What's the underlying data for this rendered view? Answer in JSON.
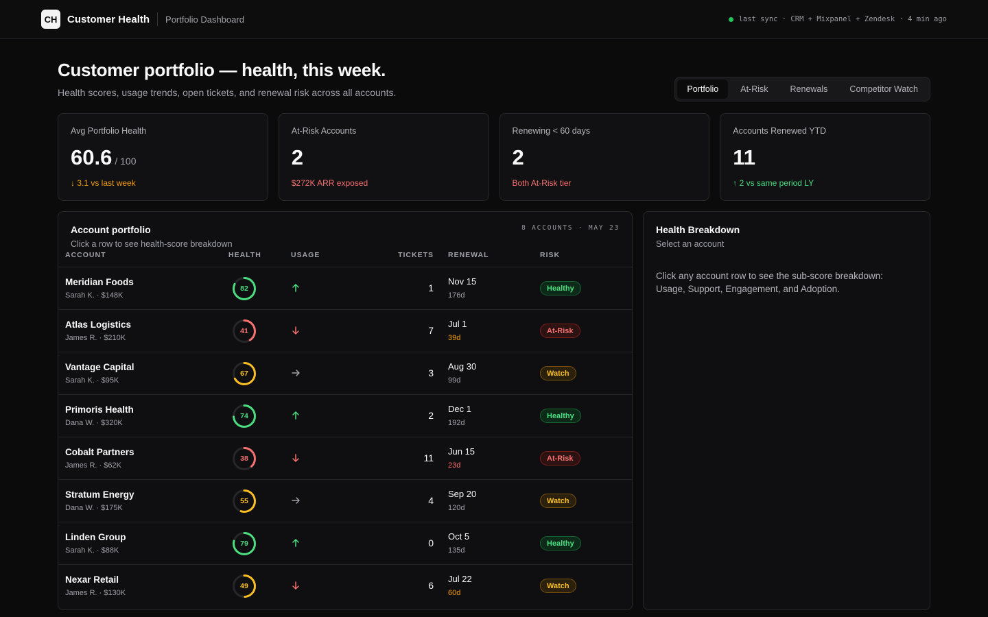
{
  "header": {
    "logo": "CH",
    "app_title": "Customer Health",
    "breadcrumb": "Portfolio Dashboard",
    "sync_text": "last sync · CRM + Mixpanel + Zendesk · 4 min ago",
    "sync_status_color": "#22c55e"
  },
  "hero": {
    "title": "Customer portfolio — health, this week.",
    "subtitle": "Health scores, usage trends, open tickets, and renewal risk across all accounts."
  },
  "tabs": [
    {
      "label": "Portfolio",
      "active": true
    },
    {
      "label": "At-Risk",
      "active": false
    },
    {
      "label": "Renewals",
      "active": false
    },
    {
      "label": "Competitor Watch",
      "active": false
    }
  ],
  "kpis": [
    {
      "label": "Avg Portfolio Health",
      "value": "60.6",
      "unit": "/ 100",
      "note": "↓ 3.1 vs last week",
      "tone": "orange"
    },
    {
      "label": "At-Risk Accounts",
      "value": "2",
      "unit": "",
      "note": "$272K ARR exposed",
      "tone": "red"
    },
    {
      "label": "Renewing < 60 days",
      "value": "2",
      "unit": "",
      "note": "Both At-Risk tier",
      "tone": "red"
    },
    {
      "label": "Accounts Renewed YTD",
      "value": "11",
      "unit": "",
      "note": "↑ 2 vs same period LY",
      "tone": "green"
    }
  ],
  "portfolio": {
    "title": "Account portfolio",
    "subtitle": "Click a row to see health-score breakdown",
    "meta": "8 ACCOUNTS · MAY 23",
    "columns": {
      "account": "ACCOUNT",
      "health": "HEALTH",
      "usage": "USAGE",
      "tickets": "TICKETS",
      "renewal": "RENEWAL",
      "risk": "RISK"
    },
    "rows": [
      {
        "name": "Meridian Foods",
        "meta": "Sarah K. · $148K",
        "health": 82,
        "usage": "up",
        "tickets": "1",
        "renewal_date": "Nov 15",
        "renewal_days": "176d",
        "days_tone": "muted",
        "risk": "Healthy",
        "risk_class": "healthy"
      },
      {
        "name": "Atlas Logistics",
        "meta": "James R. · $210K",
        "health": 41,
        "usage": "down",
        "tickets": "7",
        "renewal_date": "Jul 1",
        "renewal_days": "39d",
        "days_tone": "orange",
        "risk": "At-Risk",
        "risk_class": "atrisk"
      },
      {
        "name": "Vantage Capital",
        "meta": "Sarah K. · $95K",
        "health": 67,
        "usage": "flat",
        "tickets": "3",
        "renewal_date": "Aug 30",
        "renewal_days": "99d",
        "days_tone": "muted",
        "risk": "Watch",
        "risk_class": "watch"
      },
      {
        "name": "Primoris Health",
        "meta": "Dana W. · $320K",
        "health": 74,
        "usage": "up",
        "tickets": "2",
        "renewal_date": "Dec 1",
        "renewal_days": "192d",
        "days_tone": "muted",
        "risk": "Healthy",
        "risk_class": "healthy"
      },
      {
        "name": "Cobalt Partners",
        "meta": "James R. · $62K",
        "health": 38,
        "usage": "down",
        "tickets": "11",
        "renewal_date": "Jun 15",
        "renewal_days": "23d",
        "days_tone": "red",
        "risk": "At-Risk",
        "risk_class": "atrisk"
      },
      {
        "name": "Stratum Energy",
        "meta": "Dana W. · $175K",
        "health": 55,
        "usage": "flat",
        "tickets": "4",
        "renewal_date": "Sep 20",
        "renewal_days": "120d",
        "days_tone": "muted",
        "risk": "Watch",
        "risk_class": "watch"
      },
      {
        "name": "Linden Group",
        "meta": "Sarah K. · $88K",
        "health": 79,
        "usage": "up",
        "tickets": "0",
        "renewal_date": "Oct 5",
        "renewal_days": "135d",
        "days_tone": "muted",
        "risk": "Healthy",
        "risk_class": "healthy"
      },
      {
        "name": "Nexar Retail",
        "meta": "James R. · $130K",
        "health": 49,
        "usage": "down",
        "tickets": "6",
        "renewal_date": "Jul 22",
        "renewal_days": "60d",
        "days_tone": "orange",
        "risk": "Watch",
        "risk_class": "watch"
      }
    ]
  },
  "breakdown": {
    "title": "Health Breakdown",
    "subtitle": "Select an account",
    "body": "Click any account row to see the sub-score breakdown: Usage, Support, Engagement, and Adoption."
  },
  "colors": {
    "healthy": "#4ade80",
    "watch": "#fbbf24",
    "atrisk": "#f87171",
    "ring_track": "#27272a",
    "flat_arrow": "#a1a1aa"
  }
}
